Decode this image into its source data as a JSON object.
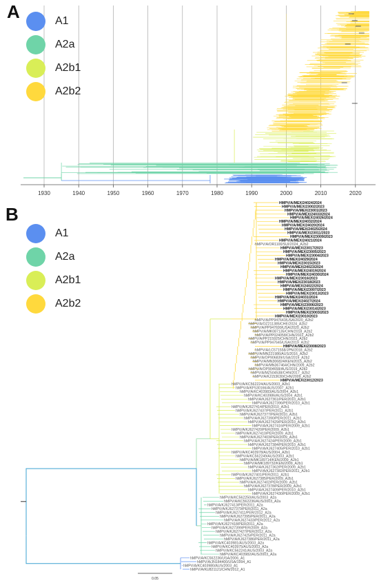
{
  "panel_a": {
    "label": "A",
    "legend": [
      {
        "label": "A1",
        "color": "#5B8FF0"
      },
      {
        "label": "A2a",
        "color": "#6FD4A8"
      },
      {
        "label": "A2b1",
        "color": "#D9EE57"
      },
      {
        "label": "A2b2",
        "color": "#FFD93D"
      }
    ],
    "x_ticks": [
      "1930",
      "1940",
      "1950",
      "1960",
      "1970",
      "1980",
      "1990",
      "2000",
      "2010",
      "2020"
    ]
  },
  "panel_b": {
    "label": "B",
    "legend": [
      {
        "label": "A1",
        "color": "#5B8FF0"
      },
      {
        "label": "A2a",
        "color": "#6FD4A8"
      },
      {
        "label": "A2b1",
        "color": "#D9EE57"
      },
      {
        "label": "A2b2",
        "color": "#FFD93D"
      }
    ],
    "scale_label": "0.05",
    "tips_bold_top": [
      "HMPV/A/MEX/24024/2024",
      "HMPV/A/MEX/23002/2023",
      "HMPV/A/MEX/23001/2023",
      "HMPV/A/MEX/24033/2024",
      "HMPV/A/MEX/24026/2024",
      "HMPV/A/MEX/24032/2024",
      "HMPV/A/MEX/24020/2024",
      "HMPV/A/MEX/24025/2024",
      "HMPV/A/MEX/23011/2023",
      "HMPV/A/MEX/23009/2023",
      "HMPV/A/MEX/24021/2024"
    ],
    "tip_grey_1": "hMPV/A/OR1100/SUI/2024_A2b2",
    "tips_bold_mid": [
      "HMPV/A/MEX/23017/2023",
      "HMPV/A/MEX/23005/2023",
      "HMPV/A/MEX/23004/2023",
      "HMPV/A/MEX/24029/2024",
      "HMPV/A/MEX/23015/2023",
      "HMPV/A/MEX/24023/2024",
      "HMPV/A/MEX/24019/2024",
      "HMPV/A/MEX/24030/2024",
      "HMPV/A/MEX/23016/2023",
      "HMPV/A/MEX/23018/2023",
      "HMPV/A/MEX/24022/2024",
      "HMPV/A/MEX/23007/2023",
      "HMPV/A/MEX/23013/2023",
      "HMPV/A/MEX/24031/2024",
      "HMPV/A/MEX/24027/2024",
      "HMPV/A/MEX/23006/2023",
      "HMPV/A/MEX/23014/2023",
      "HMPV/A/MEX/23003/2023"
    ],
    "tip_bold_single_1": "HMPV/A/MEX/23010/2023",
    "tips_grey_a2b2": [
      "hMPV/A/PP947643/USA/2020_A2b2",
      "hMPV/A/OZ211385/CHE/2024_A2b2",
      "hMPV/A/PP947699/USA/2020_A2b2",
      "hMPV/A/MK087135/CHN/2018_A2b2",
      "hMPV/A/PP024058/CHN/2022_A2b2",
      "hMPV/A/PP215925/CHN/2023_A2b2",
      "hMPV/A/PP947645/USA/2019_A2b2"
    ],
    "tip_bold_single_2": "HMPV/A/MEX/23008/2023",
    "tips_grey_a2b2_b": [
      "hMPV/A/LC571558/JPN/2018_A2b2",
      "hMPV/A/MN221986/AUS/2016_A2b2",
      "hMPV/A/OP906839/USA/2019_A2b2",
      "hMPV/A/MN306824/KEN/2015_A2b2",
      "hMPV/A/MN367464/CHN/2009_A2b2",
      "hMPV/A/OP904658/AUS/2019_A2b2",
      "hMPV/A/MZ504538/CHN/2017_A2b2",
      "hMPV/A/KJ153630/CHN/2009_A2b2"
    ],
    "tip_bold_single_3": "HMPV/A/MEX/23012/2023",
    "tips_grey_a2b1": [
      "hMPV/A/KC562224/AUS/2003_A2b1",
      "hMPV/A/KF530166/AUS/2007_A2b1",
      "hMPV/A/KC403983/AUS/2004_A2b1",
      "hMPV/A/KC403986/AUS/2004_A2b1",
      "hMPV/A/KJ627361/PER/2010_A2b1",
      "hMPV/A/KJ627396/PER/2010_A2b1",
      "hMPV/A/KJ627414/PER/2010_A2b1",
      "hMPV/A/KJ627437/PER/2011_A2b1",
      "hMPV/A/KJ627377/PER/2010_A2b1",
      "hMPV/A/KJ627390/PER/2011_A2b1",
      "hMPV/A/KJ627429/PER/2010_A2b1",
      "hMPV/A/KJ627416/PER/2009_A2b1",
      "hMPV/A/KJ627420/PER/2009_A2b1",
      "hMPV/A/KJ627410/PER/2009_A2b1",
      "hMPV/A/KJ627403/PER/2009_A2b1",
      "hMPV/A/KJ627424/PER/2009_A2b1",
      "hMPV/A/KJ627384/PER/2010_A2b1",
      "hMPV/A/KJ627405/PER/2010_A2b1",
      "hMPV/A/KC403978/AUS/2004_A2b1",
      "hMPV/A/KC562249/AUS/2003_A2b1",
      "hMPV/A/MK189714/KEN/2009_A2b1",
      "hMPV/A/MK189732/KEN/2009_A2b1",
      "hMPV/A/KJ627362/PER/2009_A2b1",
      "hMPV/A/KJ627382/PER/2011_A2b1",
      "hMPV/A/KJ627401/PER/2011_A2b1",
      "hMPV/A/KJ627385/PER/2009_A2b1",
      "hMPV/A/KJ627402/PER/2009_A2b1",
      "hMPV/A/KJ627378/PER/2009_A2b1",
      "hMPV/A/KJ627409/PER/2010_A2b1",
      "hMPV/A/KJ627430/PER/2009_A2b1"
    ],
    "tips_grey_a2a": [
      "hMPV/A/KC562250/AUS/2003_A2a",
      "hMPV/A/KC562236/AUS/2003_A2a",
      "hMPV/A/KJ627413/PER/2011_A2a",
      "hMPV/A/KJ627379/PER/2011_A2a",
      "hMPV/A/KJ627411/PER/2012_A2a",
      "hMPV/A/KJ627395/PER/2011_A2a",
      "hMPV/A/KJ627433/PER/2012_A2a",
      "hMPV/A/KJ627418/PER/2011_A2a",
      "hMPV/A/KJ627399/PER/2009_A2a",
      "hMPV/A/KJ627427/PER/2012_A2a",
      "hMPV/A/KJ627425/PER/2011_A2a",
      "hMPV/A/KJ627386/PER/2011_A2a",
      "hMPV/A/KC403981/AUS/2003_A2a",
      "hMPV/A/KC403975/AUS/2003_A2a",
      "hMPV/A/KC562241/AUS/2003_A2a",
      "hMPV/A/KC403982/AUS/2003_A2a"
    ],
    "tips_grey_a1": [
      "hMPV/A/KC562236/USA/2006_A1",
      "hMPV/A/JN184400/USA/1994_A1",
      "hMPV/A/KC403980/AUS/2003_A1",
      "hMPV/A/KU821121/CHN/2012_A1"
    ]
  }
}
